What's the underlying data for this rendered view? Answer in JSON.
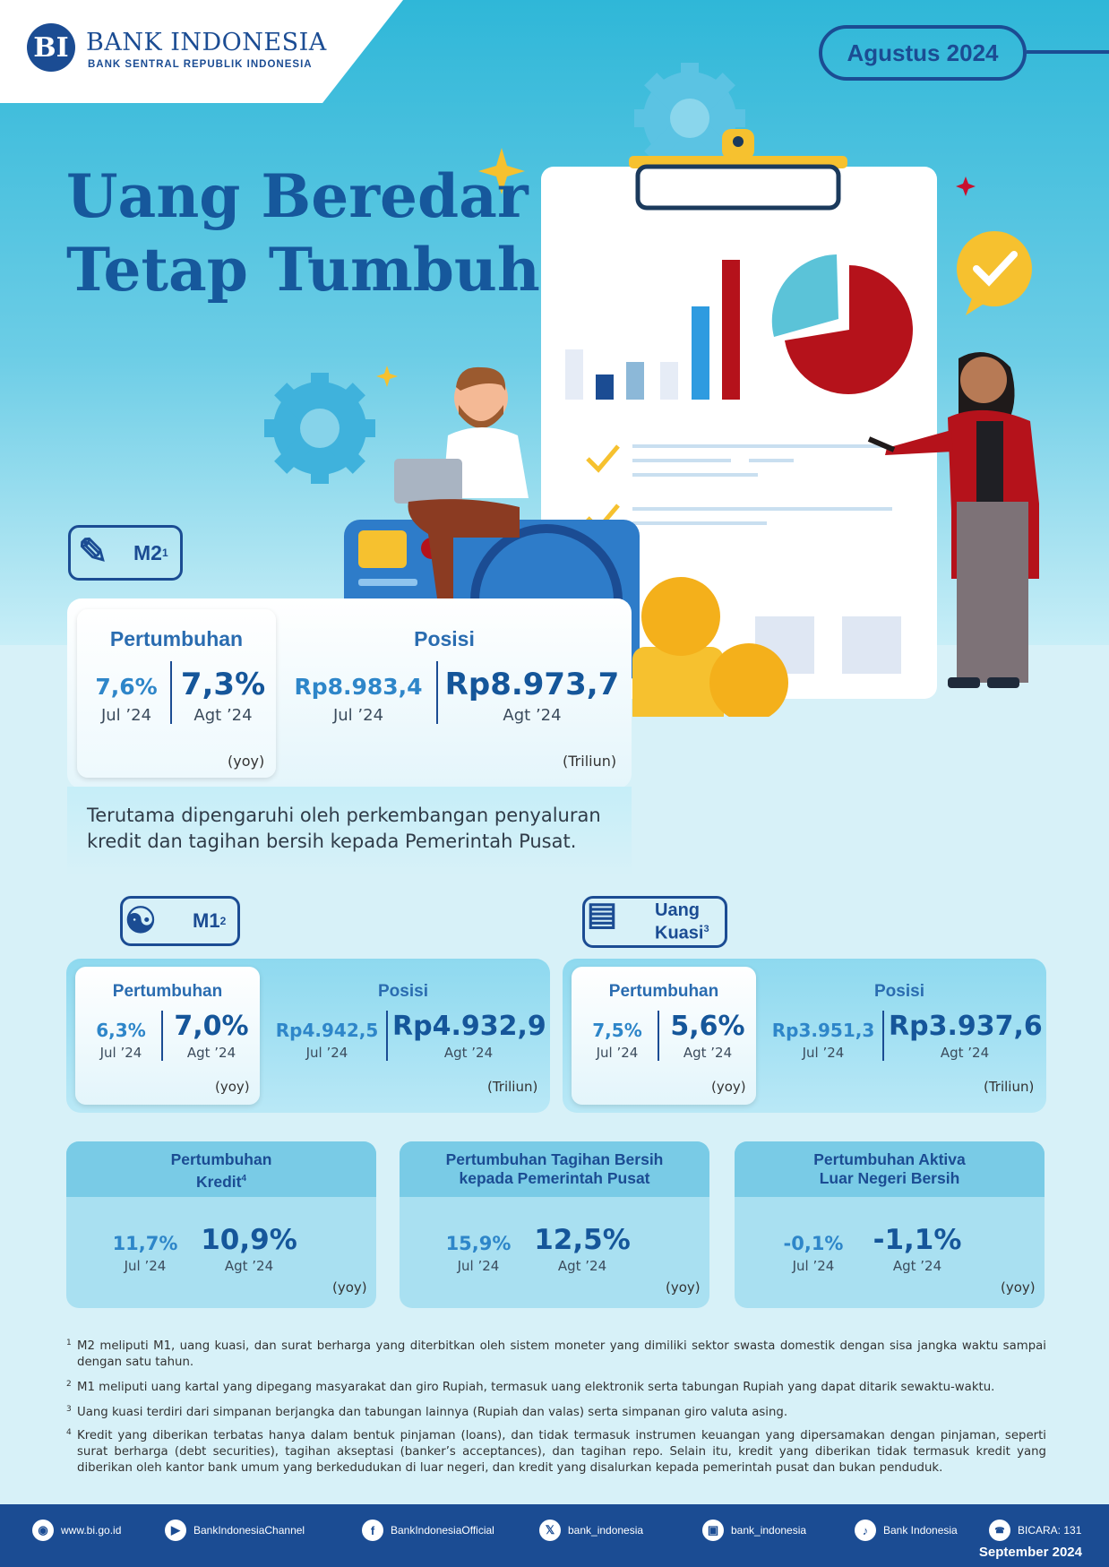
{
  "header": {
    "logo_mark": "BI",
    "logo_title": "BANK INDONESIA",
    "logo_subtitle": "BANK SENTRAL REPUBLIK INDONESIA",
    "period": "Agustus 2024",
    "title_line1": "Uang Beredar",
    "title_line2": "Tetap Tumbuh"
  },
  "m2": {
    "badge": "M2",
    "badge_sup": "1",
    "growth_label": "Pertumbuhan",
    "position_label": "Posisi",
    "growth_prev": "7,6%",
    "growth_prev_period": "Jul ’24",
    "growth_curr": "7,3%",
    "growth_curr_period": "Agt ’24",
    "growth_unit": "(yoy)",
    "pos_prev": "Rp8.983,4",
    "pos_prev_period": "Jul ’24",
    "pos_curr": "Rp8.973,7",
    "pos_curr_period": "Agt ’24",
    "pos_unit": "(Triliun)",
    "description": "Terutama dipengaruhi oleh perkembangan penyaluran kredit dan tagihan bersih kepada Pemerintah Pusat."
  },
  "m1": {
    "badge": "M1",
    "badge_sup": "2",
    "growth_label": "Pertumbuhan",
    "position_label": "Posisi",
    "growth_prev": "6,3%",
    "growth_prev_period": "Jul ’24",
    "growth_curr": "7,0%",
    "growth_curr_period": "Agt ’24",
    "growth_unit": "(yoy)",
    "pos_prev": "Rp4.942,5",
    "pos_prev_period": "Jul ’24",
    "pos_curr": "Rp4.932,9",
    "pos_curr_period": "Agt ’24",
    "pos_unit": "(Triliun)"
  },
  "kuasi": {
    "badge_line1": "Uang",
    "badge_line2": "Kuasi",
    "badge_sup": "3",
    "growth_label": "Pertumbuhan",
    "position_label": "Posisi",
    "growth_prev": "7,5%",
    "growth_prev_period": "Jul ’24",
    "growth_curr": "5,6%",
    "growth_curr_period": "Agt ’24",
    "growth_unit": "(yoy)",
    "pos_prev": "Rp3.951,3",
    "pos_prev_period": "Jul ’24",
    "pos_curr": "Rp3.937,6",
    "pos_curr_period": "Agt ’24",
    "pos_unit": "(Triliun)"
  },
  "small_cards": [
    {
      "title_line1": "Pertumbuhan",
      "title_line2": "Kredit",
      "title_sup": "4",
      "prev": "11,7%",
      "prev_period": "Jul ’24",
      "curr": "10,9%",
      "curr_period": "Agt ’24",
      "unit": "(yoy)"
    },
    {
      "title_line1": "Pertumbuhan Tagihan Bersih",
      "title_line2": "kepada Pemerintah Pusat",
      "title_sup": "",
      "prev": "15,9%",
      "prev_period": "Jul ’24",
      "curr": "12,5%",
      "curr_period": "Agt ’24",
      "unit": "(yoy)"
    },
    {
      "title_line1": "Pertumbuhan Aktiva",
      "title_line2": "Luar Negeri Bersih",
      "title_sup": "",
      "prev": "-0,1%",
      "prev_period": "Jul ’24",
      "curr": "-1,1%",
      "curr_period": "Agt ’24",
      "unit": "(yoy)"
    }
  ],
  "footnotes": [
    {
      "num": "1",
      "text": "M2 meliputi M1, uang kuasi, dan surat berharga yang diterbitkan oleh sistem moneter yang dimiliki sektor swasta domestik dengan sisa jangka waktu sampai dengan satu tahun."
    },
    {
      "num": "2",
      "text": "M1 meliputi uang kartal yang dipegang masyarakat dan giro Rupiah, termasuk uang elektronik serta tabungan Rupiah yang dapat ditarik sewaktu-waktu."
    },
    {
      "num": "3",
      "text": "Uang kuasi terdiri dari simpanan berjangka dan tabungan lainnya (Rupiah dan valas) serta simpanan giro valuta asing."
    },
    {
      "num": "4",
      "text": "Kredit yang diberikan terbatas hanya dalam bentuk pinjaman (loans), dan tidak termasuk instrumen keuangan yang dipersamakan dengan pinjaman, seperti surat berharga (debt securities), tagihan akseptasi (banker’s acceptances), dan tagihan repo. Selain itu, kredit yang diberikan tidak termasuk kredit yang diberikan oleh kantor bank umum yang berkedudukan di luar negeri, dan kredit yang disalurkan kepada pemerintah pusat dan bukan penduduk."
    }
  ],
  "footer": {
    "links": [
      {
        "icon": "globe-icon",
        "label": "www.bi.go.id"
      },
      {
        "icon": "youtube-icon",
        "label": "BankIndonesiaChannel"
      },
      {
        "icon": "facebook-icon",
        "label": "BankIndonesiaOfficial"
      },
      {
        "icon": "x-icon",
        "label": "bank_indonesia"
      },
      {
        "icon": "instagram-icon",
        "label": "bank_indonesia"
      },
      {
        "icon": "tiktok-icon",
        "label": "Bank Indonesia"
      },
      {
        "icon": "bicara-icon",
        "label": "BICARA: 131"
      }
    ],
    "date": "September 2024"
  },
  "colors": {
    "primary": "#1b4c93",
    "accent_red": "#b5121b",
    "accent_yellow": "#f6c12f",
    "sky": "#2fb7d8"
  }
}
